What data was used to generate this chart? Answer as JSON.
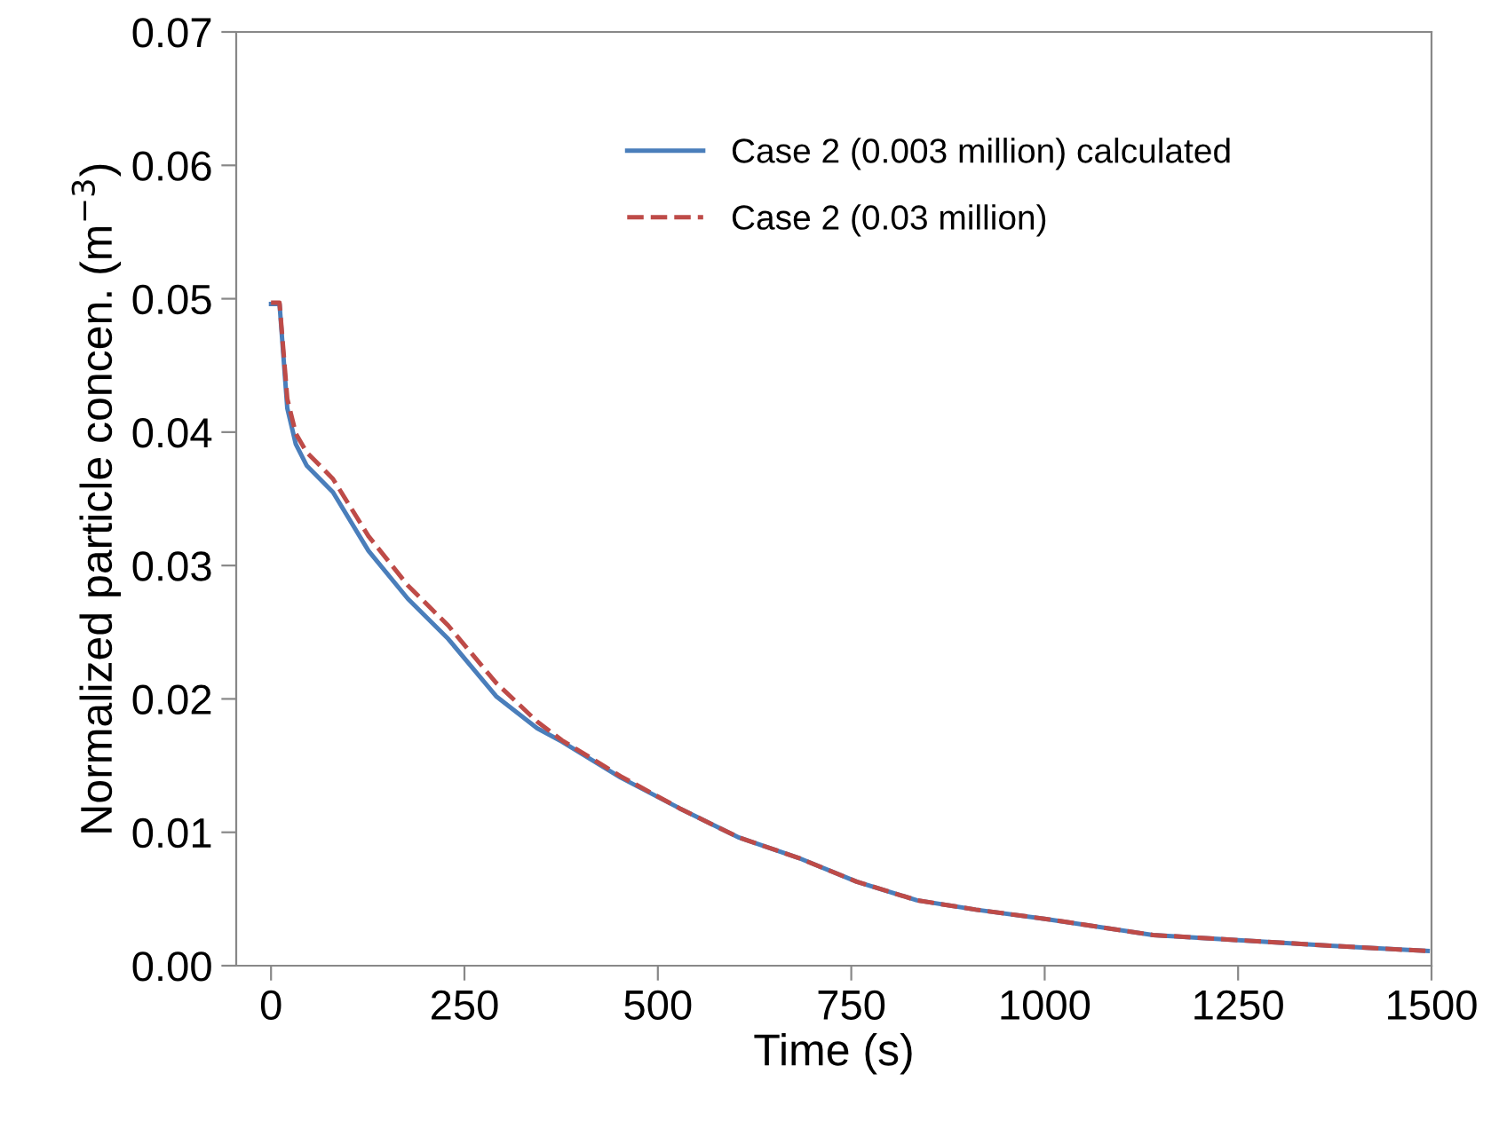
{
  "chart_data": {
    "type": "line",
    "xlabel": "Time (s)",
    "ylabel": "Normalized particle concen. (m$^{−3}$)",
    "xlim": [
      -45,
      1500
    ],
    "xticks": [
      0,
      250,
      500,
      750,
      1000,
      1250,
      1500
    ],
    "ylim": [
      0,
      0.07
    ],
    "yticks": [
      {
        "value": 0,
        "label": "0.00"
      },
      {
        "value": 0.01,
        "label": "0.01"
      },
      {
        "value": 0.02,
        "label": "0.02"
      },
      {
        "value": 0.03,
        "label": "0.03"
      },
      {
        "value": 0.04,
        "label": "0.04"
      },
      {
        "value": 0.05,
        "label": "0.05"
      },
      {
        "value": 0.06,
        "label": "0.06"
      },
      {
        "value": 0.07,
        "label": "0.07"
      }
    ],
    "grid": false,
    "legend": "top",
    "marker": "none",
    "series": [
      {
        "name": "Case 2 (0.003 million) calculated",
        "color": "#4a7ebb",
        "line_style": "solid",
        "x": [
          0,
          11,
          21,
          32,
          46,
          80,
          126,
          177,
          229,
          291,
          344,
          376,
          452,
          528,
          605,
          681,
          757,
          835,
          911,
          1002,
          1140,
          1255,
          1369,
          1495
        ],
        "values": [
          0.0496,
          0.0496,
          0.0418,
          0.0391,
          0.0375,
          0.0355,
          0.0311,
          0.0275,
          0.0245,
          0.0202,
          0.0178,
          0.0168,
          0.0141,
          0.0118,
          0.0096,
          0.0081,
          0.0063,
          0.0049,
          0.0042,
          0.0035,
          0.0023,
          0.0019,
          0.0015,
          0.0011
        ]
      },
      {
        "name": "Case 2 (0.03 million)",
        "color": "#be4b48",
        "line_style": "dashed",
        "x": [
          0,
          11,
          21,
          32,
          46,
          80,
          126,
          177,
          229,
          291,
          344,
          376,
          452,
          528,
          605,
          681,
          757,
          835,
          911,
          1002,
          1140,
          1255,
          1369,
          1495
        ],
        "values": [
          0.0497,
          0.0497,
          0.0425,
          0.0399,
          0.0385,
          0.0365,
          0.0322,
          0.0285,
          0.0255,
          0.0212,
          0.0183,
          0.0169,
          0.0142,
          0.0118,
          0.0096,
          0.0081,
          0.0063,
          0.0049,
          0.0042,
          0.0035,
          0.0023,
          0.0019,
          0.0015,
          0.0011
        ]
      }
    ]
  }
}
